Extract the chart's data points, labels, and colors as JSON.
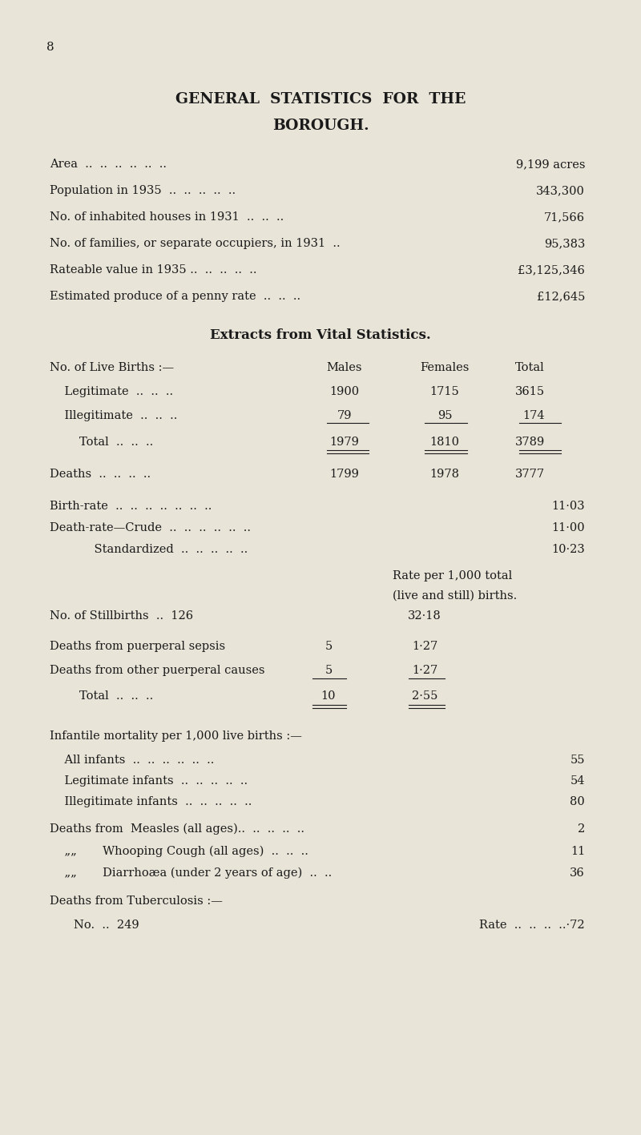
{
  "bg_color": "#e8e4d8",
  "text_color": "#1a1a1a",
  "page_number": "8",
  "title_line1": "GENERAL  STATISTICS  FOR  THE",
  "title_line2": "BOROUGH.",
  "general_stats": [
    [
      "Area  ..  ..  ..  ..  ..  ..",
      "9,199 acres"
    ],
    [
      "Population in 1935  ..  ..  ..  ..  ..",
      "343,300"
    ],
    [
      "No. of inhabited houses in 1931  ..  ..  ..",
      "71,566"
    ],
    [
      "No. of families, or separate occupiers, in 1931  ..",
      "95,383"
    ],
    [
      "Rateable value in 1935 ..  ..  ..  ..  ..",
      "£3,125,346"
    ],
    [
      "Estimated produce of a penny rate  ..  ..  ..",
      "£12,645"
    ]
  ],
  "section2_title": "Extracts from Vital Statistics.",
  "births_header": [
    "No. of Live Births :—",
    "Males",
    "Females",
    "Total"
  ],
  "births_rows": [
    [
      "    Legitimate  ..  ..  ..",
      "1900",
      "1715",
      "3615"
    ],
    [
      "    Illegitimate  ..  ..  ..",
      "79",
      "95",
      "174"
    ],
    [
      "        Total  ..  ..  ..",
      "1979",
      "1810",
      "3789"
    ]
  ],
  "deaths_row": [
    "Deaths  ..  ..  ..  ..",
    "1799",
    "1978",
    "3777"
  ],
  "rates": [
    [
      "Birth-rate  ..  ..  ..  ..  ..  ..  ..",
      "11·03"
    ],
    [
      "Death-rate—Crude  ..  ..  ..  ..  ..  ..",
      "11·00"
    ],
    [
      "            Standardized  ..  ..  ..  ..  ..",
      "10·23"
    ]
  ],
  "rate_note_line1": "Rate per 1,000 total",
  "rate_note_line2": "(live and still) births.",
  "stillbirths": [
    "No. of Stillbirths  ..  126",
    "32·18"
  ],
  "puerperal_rows": [
    [
      "Deaths from puerperal sepsis",
      "5",
      "1·27"
    ],
    [
      "Deaths from other puerperal causes",
      "5",
      "1·27"
    ],
    [
      "        Total  ..  ..  ..",
      "10",
      "2·55"
    ]
  ],
  "infantile_header": "Infantile mortality per 1,000 live births :—",
  "infantile_rows": [
    [
      "    All infants  ..  ..  ..  ..  ..  ..",
      "55"
    ],
    [
      "    Legitimate infants  ..  ..  ..  ..  ..",
      "54"
    ],
    [
      "    Illegitimate infants  ..  ..  ..  ..  ..",
      "80"
    ]
  ],
  "deaths_from": [
    [
      "Deaths from  Measles (all ages)..  ..  ..  ..  ..",
      "2"
    ],
    [
      "    „„       Whooping Cough (all ages)  ..  ..  ..",
      "11"
    ],
    [
      "    „„       Diarrhoæa (under 2 years of age)  ..  ..",
      "36"
    ]
  ],
  "tuberculosis_header": "Deaths from Tuberculosis :—",
  "tuberculosis_no": "No.  ..  249",
  "tuberculosis_rate": "Rate  ..  ..  ..  ..·72"
}
